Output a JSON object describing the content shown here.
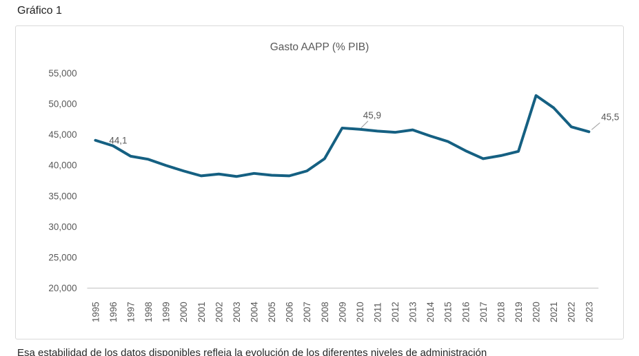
{
  "page": {
    "title": "Gráfico 1",
    "caption_clipped": "Esa estabilidad de los datos disponibles refleja la evolución de los diferentes niveles de administración"
  },
  "chart": {
    "colors": {
      "line": "#156082",
      "axis_line": "#bfbfbf",
      "tick_label": "#595959",
      "leader_line": "#a6a6a6",
      "border": "#d9d9d9"
    }
  },
  "chart_data": {
    "type": "line",
    "title": "Gasto AAPP (% PIB)",
    "x": [
      "1995",
      "1996",
      "1997",
      "1998",
      "1999",
      "2000",
      "2001",
      "2002",
      "2003",
      "2004",
      "2005",
      "2006",
      "2007",
      "2008",
      "2009",
      "2010",
      "2011",
      "2012",
      "2013",
      "2014",
      "2015",
      "2016",
      "2017",
      "2018",
      "2019",
      "2020",
      "2021",
      "2022",
      "2023"
    ],
    "values": [
      44.1,
      43.2,
      41.5,
      41.0,
      40.0,
      39.1,
      38.3,
      38.6,
      38.2,
      38.7,
      38.4,
      38.3,
      39.1,
      41.1,
      46.1,
      45.9,
      45.6,
      45.4,
      45.8,
      44.8,
      43.9,
      42.4,
      41.1,
      41.6,
      42.3,
      51.4,
      49.4,
      46.3,
      45.5
    ],
    "ylim": [
      20,
      55
    ],
    "ytick_step": 5,
    "ytick_labels": [
      "20,000",
      "25,000",
      "30,000",
      "35,000",
      "40,000",
      "45,000",
      "50,000",
      "55,000"
    ],
    "grid": false,
    "legend": "none",
    "annotations": [
      {
        "x": "1995",
        "label": "44,1",
        "placement": "right",
        "leader": false
      },
      {
        "x": "2010",
        "label": "45,9",
        "placement": "above",
        "leader": true
      },
      {
        "x": "2023",
        "label": "45,5",
        "placement": "above-right",
        "leader": true
      }
    ]
  }
}
